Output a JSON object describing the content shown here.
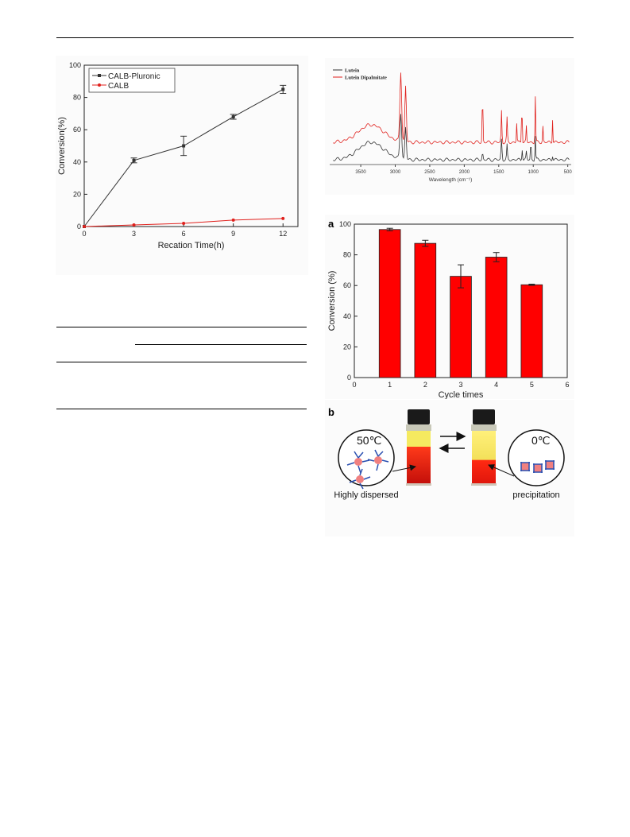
{
  "chart_data": [
    {
      "id": "conversion-time",
      "type": "line",
      "xlabel": "Recation Time(h)",
      "ylabel": "Conversion(%)",
      "xlim": [
        0,
        12.9
      ],
      "ylim": [
        0,
        100
      ],
      "xticks": [
        0,
        3,
        6,
        9,
        12
      ],
      "yticks": [
        0,
        20,
        40,
        60,
        80,
        100
      ],
      "legend_position": "top-left",
      "grid": false,
      "series": [
        {
          "name": "CALB-Pluronic",
          "color": "#333333",
          "x": [
            0,
            3,
            6,
            9,
            12
          ],
          "y": [
            0,
            41,
            50,
            68,
            85
          ],
          "err": [
            0,
            1.5,
            6,
            1.5,
            2.5
          ]
        },
        {
          "name": "CALB",
          "color": "#e0201c",
          "x": [
            0,
            3,
            6,
            9,
            12
          ],
          "y": [
            0,
            1,
            2,
            4,
            5
          ],
          "err": [
            0,
            0,
            0,
            0,
            0
          ]
        }
      ]
    },
    {
      "id": "ftir-spectra",
      "type": "line",
      "xlabel": "Wavelength (cm⁻¹)",
      "xticks": [
        3500,
        3000,
        2500,
        2000,
        1500,
        1000,
        500
      ],
      "xlim": [
        3950,
        450
      ],
      "legend_position": "top-left",
      "series": [
        {
          "name": "Lutein",
          "color": "#333333"
        },
        {
          "name": "Lutein Dipalmitate",
          "color": "#e0201c"
        }
      ]
    },
    {
      "id": "reuse-cycles",
      "panel_label": "a",
      "type": "bar",
      "xlabel": "Cycle times",
      "ylabel": "Conversion (%)",
      "xlim": [
        0,
        6
      ],
      "ylim": [
        0,
        100
      ],
      "xticks": [
        0,
        1,
        2,
        3,
        4,
        5,
        6
      ],
      "yticks": [
        0,
        20,
        40,
        60,
        80,
        100
      ],
      "categories": [
        1,
        2,
        3,
        4,
        5
      ],
      "values": [
        96.5,
        87.5,
        66,
        78.5,
        60.5
      ],
      "errors": [
        0.8,
        2,
        7.5,
        3,
        0.4
      ],
      "bar_color": "#ff0000"
    }
  ],
  "photo_panel": {
    "panel_label": "b",
    "left_temp": "50℃",
    "right_temp": "0℃",
    "left_caption": "Highly dispersed",
    "right_caption": "precipitation"
  }
}
